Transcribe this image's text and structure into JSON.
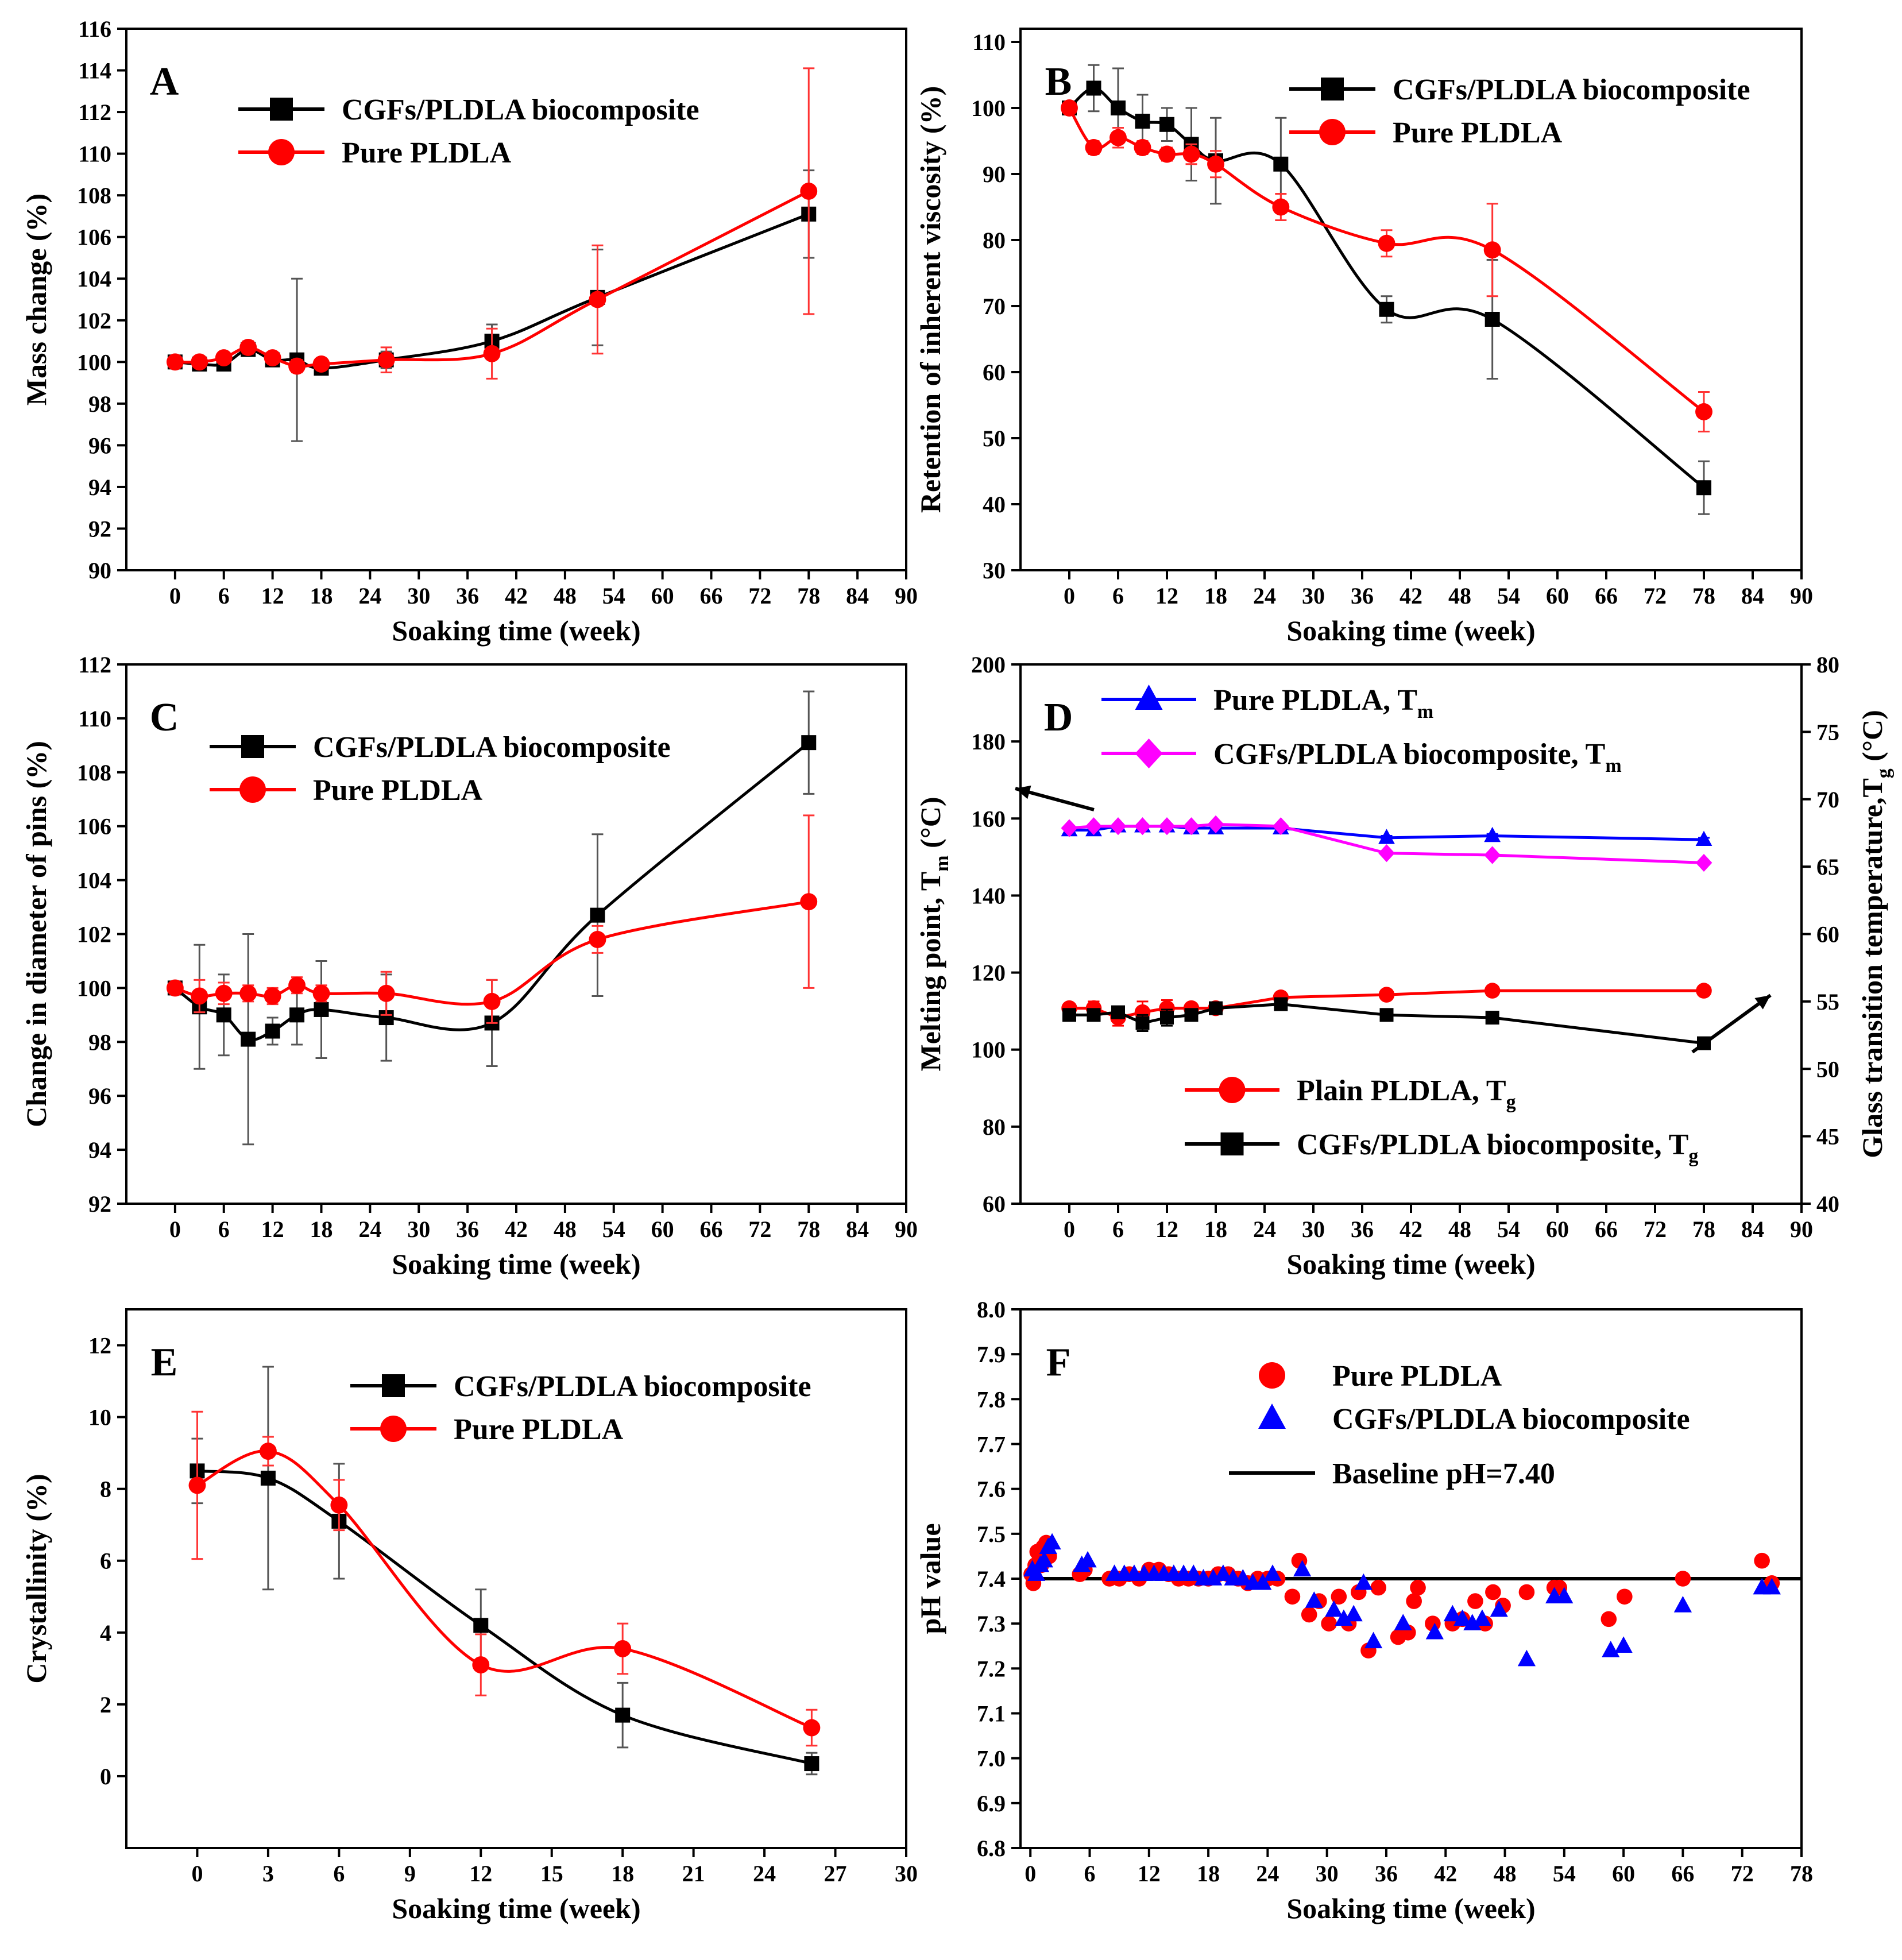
{
  "chart_data": [
    {
      "panel": "A",
      "type": "line",
      "xlabel": "Soaking time (week)",
      "ylabel": "Mass change (%)",
      "xlim": [
        -6,
        90
      ],
      "ylim": [
        90,
        116
      ],
      "xticks": [
        0,
        6,
        12,
        18,
        24,
        30,
        36,
        42,
        48,
        54,
        60,
        66,
        72,
        78,
        84,
        90
      ],
      "yticks": [
        90,
        92,
        94,
        96,
        98,
        100,
        102,
        104,
        106,
        108,
        110,
        112,
        114,
        116
      ],
      "legend_pos": "top-center",
      "series": [
        {
          "name": "CGFs/PLDLA biocomposite",
          "color": "#000000",
          "marker": "square",
          "x": [
            0,
            3,
            6,
            9,
            12,
            15,
            18,
            26,
            39,
            52,
            78
          ],
          "y": [
            100.0,
            99.9,
            99.9,
            100.6,
            100.1,
            100.1,
            99.7,
            100.1,
            101.0,
            103.1,
            107.1
          ],
          "err": [
            0.2,
            0.2,
            0.2,
            0.3,
            0.2,
            3.9,
            0.2,
            0.4,
            0.8,
            2.3,
            2.1
          ]
        },
        {
          "name": "Pure PLDLA",
          "color": "#ff0000",
          "marker": "circle",
          "x": [
            0,
            3,
            6,
            9,
            12,
            15,
            18,
            26,
            39,
            52,
            78
          ],
          "y": [
            100.0,
            100.0,
            100.2,
            100.7,
            100.2,
            99.8,
            99.9,
            100.1,
            100.4,
            103.0,
            108.2
          ],
          "err": [
            0.2,
            0.2,
            0.2,
            0.3,
            0.2,
            0.3,
            0.2,
            0.6,
            1.2,
            2.6,
            5.9
          ]
        }
      ]
    },
    {
      "panel": "B",
      "type": "line",
      "xlabel": "Soaking time (week)",
      "ylabel": "Retention of  inherent viscosity (%)",
      "xlim": [
        -6,
        90
      ],
      "ylim": [
        30,
        112
      ],
      "xticks": [
        0,
        6,
        12,
        18,
        24,
        30,
        36,
        42,
        48,
        54,
        60,
        66,
        72,
        78,
        84,
        90
      ],
      "yticks": [
        30,
        40,
        50,
        60,
        70,
        80,
        90,
        100,
        110
      ],
      "legend_pos": "top-right",
      "series": [
        {
          "name": "CGFs/PLDLA biocomposite",
          "color": "#000000",
          "marker": "square",
          "x": [
            0,
            3,
            6,
            9,
            12,
            15,
            18,
            26,
            39,
            52,
            78
          ],
          "y": [
            100,
            103,
            100,
            98,
            97.5,
            94.5,
            92,
            91.5,
            69.5,
            68,
            42.5
          ],
          "err": [
            0.5,
            3.5,
            6,
            4,
            2.5,
            5.5,
            6.5,
            7,
            2,
            9,
            4
          ]
        },
        {
          "name": "Pure PLDLA",
          "color": "#ff0000",
          "marker": "circle",
          "x": [
            0,
            3,
            6,
            9,
            12,
            15,
            18,
            26,
            39,
            52,
            78
          ],
          "y": [
            100,
            94,
            95.5,
            94,
            93,
            93,
            91.5,
            85,
            79.5,
            78.5,
            54
          ],
          "err": [
            0.5,
            1,
            1.5,
            1,
            1,
            1.5,
            2,
            2,
            2,
            7,
            3
          ]
        }
      ]
    },
    {
      "panel": "C",
      "type": "line",
      "xlabel": "Soaking time (week)",
      "ylabel": "Change in diameter of pins (%)",
      "xlim": [
        -6,
        90
      ],
      "ylim": [
        92,
        112
      ],
      "xticks": [
        0,
        6,
        12,
        18,
        24,
        30,
        36,
        42,
        48,
        54,
        60,
        66,
        72,
        78,
        84,
        90
      ],
      "yticks": [
        92,
        94,
        96,
        98,
        100,
        102,
        104,
        106,
        108,
        110,
        112
      ],
      "legend_pos": "top-left",
      "series": [
        {
          "name": "CGFs/PLDLA biocomposite",
          "color": "#000000",
          "marker": "square",
          "x": [
            0,
            3,
            6,
            9,
            12,
            15,
            18,
            26,
            39,
            52,
            78
          ],
          "y": [
            100.0,
            99.3,
            99.0,
            98.1,
            98.4,
            99.0,
            99.2,
            98.9,
            98.7,
            102.7,
            109.1
          ],
          "err": [
            0.2,
            2.3,
            1.5,
            3.9,
            0.5,
            1.1,
            1.8,
            1.6,
            1.6,
            3.0,
            1.9
          ]
        },
        {
          "name": "Pure PLDLA",
          "color": "#ff0000",
          "marker": "circle",
          "x": [
            0,
            3,
            6,
            9,
            12,
            15,
            18,
            26,
            39,
            52,
            78
          ],
          "y": [
            100.0,
            99.7,
            99.8,
            99.8,
            99.7,
            100.1,
            99.8,
            99.8,
            99.5,
            101.8,
            103.2
          ],
          "err": [
            0.2,
            0.6,
            0.4,
            0.3,
            0.3,
            0.3,
            0.3,
            0.8,
            0.8,
            0.5,
            3.2
          ]
        }
      ]
    },
    {
      "panel": "D",
      "type": "line",
      "xlabel": "Soaking time (week)",
      "ylabel_left": "Melting point, T",
      "ylabel_left_sub": "m",
      "ylabel_left_unit": " (°C)",
      "ylabel_right": "Glass transition temperature,T",
      "ylabel_right_sub": "g",
      "ylabel_right_unit": " (°C)",
      "xlim": [
        -6,
        90
      ],
      "ylim_left": [
        60,
        200
      ],
      "ylim_right": [
        40,
        80
      ],
      "xticks": [
        0,
        6,
        12,
        18,
        24,
        30,
        36,
        42,
        48,
        54,
        60,
        66,
        72,
        78,
        84,
        90
      ],
      "yticks_left": [
        60,
        80,
        100,
        120,
        140,
        160,
        180,
        200
      ],
      "yticks_right": [
        40,
        45,
        50,
        55,
        60,
        65,
        70,
        75,
        80
      ],
      "legend_pos": "top-left and bottom-center",
      "series": [
        {
          "name": "Pure PLDLA, T",
          "sub": "m",
          "axis": "left",
          "color": "#0000ff",
          "marker": "triangle",
          "x": [
            0,
            3,
            6,
            9,
            12,
            15,
            18,
            26,
            39,
            52,
            78
          ],
          "y": [
            157,
            157,
            158,
            158,
            158,
            157.5,
            157.5,
            157.5,
            155,
            155.5,
            154.5
          ],
          "err": [
            1,
            1,
            0.5,
            0.5,
            0.5,
            0.5,
            0.5,
            1,
            0.5,
            0.5,
            0.5
          ]
        },
        {
          "name": "CGFs/PLDLA biocomposite, T",
          "sub": "m",
          "axis": "left",
          "color": "#ff00ff",
          "marker": "diamond",
          "x": [
            0,
            3,
            6,
            9,
            12,
            15,
            18,
            26,
            39,
            52,
            78
          ],
          "y": [
            157.5,
            158,
            158,
            158,
            158,
            158,
            158.5,
            158,
            151,
            150.5,
            148.5
          ],
          "err": [
            0.5,
            0.5,
            0.5,
            0.5,
            0.5,
            0.5,
            0.5,
            0.5,
            0.5,
            0.5,
            0.5
          ]
        },
        {
          "name": "Plain PLDLA, T",
          "sub": "g",
          "axis": "right",
          "color": "#ff0000",
          "marker": "circle",
          "x": [
            0,
            3,
            6,
            9,
            12,
            15,
            18,
            26,
            39,
            52,
            78
          ],
          "y": [
            54.5,
            54.5,
            53.8,
            54.2,
            54.5,
            54.5,
            54.5,
            55.3,
            55.5,
            55.8,
            55.8
          ],
          "err": [
            0.3,
            0.5,
            0.6,
            0.8,
            0.6,
            0.3,
            0.2,
            0.2,
            0.2,
            0.2,
            0.2
          ]
        },
        {
          "name": "CGFs/PLDLA biocomposite, T",
          "sub": "g",
          "axis": "right",
          "color": "#000000",
          "marker": "square",
          "x": [
            0,
            3,
            6,
            9,
            12,
            15,
            18,
            26,
            39,
            52,
            78
          ],
          "y": [
            54.0,
            54.0,
            54.2,
            53.4,
            53.8,
            54.0,
            54.5,
            54.8,
            54.0,
            53.8,
            51.9
          ],
          "err": [
            0.3,
            0.3,
            0.4,
            0.6,
            0.6,
            0.4,
            0.2,
            0.2,
            0.2,
            0.2,
            0.3
          ]
        }
      ]
    },
    {
      "panel": "E",
      "type": "line",
      "xlabel": "Soaking time (week)",
      "ylabel": "Crystallinity (%)",
      "xlim": [
        -3,
        30
      ],
      "ylim": [
        -2,
        13
      ],
      "xticks": [
        0,
        3,
        6,
        9,
        12,
        15,
        18,
        21,
        24,
        27,
        30
      ],
      "yticks": [
        0,
        2,
        4,
        6,
        8,
        10,
        12
      ],
      "legend_pos": "top-center",
      "series": [
        {
          "name": "CGFs/PLDLA biocomposite",
          "color": "#000000",
          "marker": "square",
          "x": [
            0,
            3,
            6,
            12,
            18,
            26
          ],
          "y": [
            8.5,
            8.3,
            7.1,
            4.2,
            1.7,
            0.35
          ],
          "err": [
            0.9,
            3.1,
            1.6,
            1.0,
            0.9,
            0.3
          ]
        },
        {
          "name": "Pure PLDLA",
          "color": "#ff0000",
          "marker": "circle",
          "x": [
            0,
            3,
            6,
            12,
            18,
            26
          ],
          "y": [
            8.1,
            9.05,
            7.55,
            3.1,
            3.55,
            1.35
          ],
          "err": [
            2.05,
            0.4,
            0.7,
            0.85,
            0.7,
            0.5
          ]
        }
      ]
    },
    {
      "panel": "F",
      "type": "scatter",
      "xlabel": "Soaking time (week)",
      "ylabel": "pH value",
      "xlim": [
        -1,
        78
      ],
      "ylim": [
        6.8,
        8.0
      ],
      "xticks": [
        0,
        6,
        12,
        18,
        24,
        30,
        36,
        42,
        48,
        54,
        60,
        66,
        72,
        78
      ],
      "yticks": [
        6.8,
        6.9,
        7.0,
        7.1,
        7.2,
        7.3,
        7.4,
        7.5,
        7.6,
        7.7,
        7.8,
        7.9,
        8.0
      ],
      "legend_pos": "top-center",
      "baseline": {
        "name": "Baseline pH=7.40",
        "y": 7.4,
        "color": "#000000"
      },
      "series": [
        {
          "name": "Pure PLDLA",
          "color": "#ff0000",
          "marker": "circle",
          "x": [
            0.1,
            0.3,
            0.5,
            0.7,
            0.9,
            1.1,
            1.3,
            1.6,
            1.9,
            5,
            5.5,
            8,
            9,
            10,
            11,
            12,
            13,
            14,
            15,
            16,
            17,
            18,
            19,
            20,
            21,
            22,
            23,
            24,
            25,
            26.5,
            27.2,
            28.2,
            29.2,
            30.2,
            31.2,
            32.2,
            33.2,
            34.2,
            35.2,
            37.2,
            38.2,
            38.8,
            39.2,
            40.7,
            42.7,
            43.7,
            45,
            46,
            46.8,
            47.8,
            50.2,
            53,
            53.5,
            58.5,
            60.1,
            66,
            74,
            75
          ],
          "y": [
            7.41,
            7.39,
            7.43,
            7.46,
            7.44,
            7.43,
            7.47,
            7.48,
            7.45,
            7.41,
            7.42,
            7.4,
            7.4,
            7.41,
            7.4,
            7.42,
            7.42,
            7.41,
            7.4,
            7.4,
            7.4,
            7.4,
            7.41,
            7.41,
            7.4,
            7.39,
            7.4,
            7.4,
            7.4,
            7.36,
            7.44,
            7.32,
            7.35,
            7.3,
            7.36,
            7.3,
            7.37,
            7.24,
            7.38,
            7.27,
            7.28,
            7.35,
            7.38,
            7.3,
            7.3,
            7.31,
            7.35,
            7.3,
            7.37,
            7.34,
            7.37,
            7.38,
            7.38,
            7.31,
            7.36,
            7.4,
            7.44,
            7.39
          ]
        },
        {
          "name": "CGFs/PLDLA biocomposite",
          "color": "#0000ff",
          "marker": "triangle",
          "x": [
            0.2,
            0.6,
            1.0,
            1.4,
            1.8,
            2.2,
            5.2,
            5.8,
            8.5,
            9.5,
            10.5,
            11.5,
            12.5,
            13.5,
            14.5,
            15.5,
            16.5,
            17.5,
            18.5,
            19.5,
            20.5,
            21.5,
            22.5,
            23.5,
            24.5,
            27.5,
            28.7,
            30.7,
            31.7,
            32.7,
            33.7,
            34.7,
            37.7,
            40.9,
            42.7,
            43.7,
            44.7,
            45.7,
            47.4,
            50.2,
            53,
            54,
            58.7,
            60,
            66,
            74,
            75
          ],
          "y": [
            7.42,
            7.41,
            7.43,
            7.44,
            7.47,
            7.48,
            7.43,
            7.44,
            7.41,
            7.41,
            7.41,
            7.41,
            7.41,
            7.41,
            7.41,
            7.41,
            7.41,
            7.4,
            7.4,
            7.41,
            7.4,
            7.4,
            7.39,
            7.39,
            7.41,
            7.42,
            7.35,
            7.33,
            7.31,
            7.32,
            7.39,
            7.26,
            7.3,
            7.28,
            7.32,
            7.31,
            7.3,
            7.31,
            7.33,
            7.22,
            7.36,
            7.36,
            7.24,
            7.25,
            7.34,
            7.38,
            7.38
          ]
        }
      ]
    }
  ],
  "legend": {
    "A": {
      "s1": "CGFs/PLDLA biocomposite",
      "s2": "Pure PLDLA"
    },
    "B": {
      "s1": "CGFs/PLDLA biocomposite",
      "s2": "Pure PLDLA"
    },
    "C": {
      "s1": "CGFs/PLDLA biocomposite",
      "s2": "Pure PLDLA"
    },
    "D": {
      "s1": "Pure PLDLA, T",
      "s1_sub": "m",
      "s2": "CGFs/PLDLA biocomposite, T",
      "s2_sub": "m",
      "s3": "Plain PLDLA, T",
      "s3_sub": "g",
      "s4": "CGFs/PLDLA biocomposite, T",
      "s4_sub": "g"
    },
    "E": {
      "s1": "CGFs/PLDLA biocomposite",
      "s2": "Pure PLDLA"
    },
    "F": {
      "s1": "Pure PLDLA",
      "s2": "CGFs/PLDLA biocomposite",
      "s3": "Baseline pH=7.40"
    }
  },
  "panel_letters": {
    "A": "A",
    "B": "B",
    "C": "C",
    "D": "D",
    "E": "E",
    "F": "F"
  }
}
